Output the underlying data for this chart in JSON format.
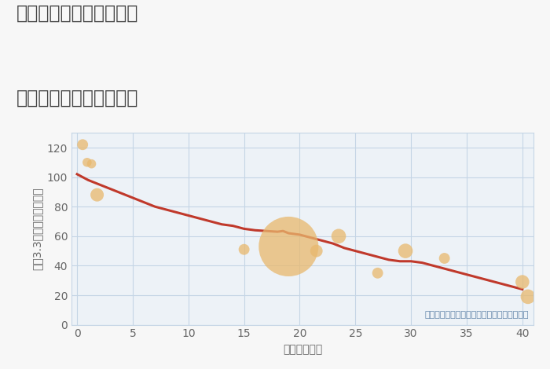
{
  "title_line1": "三重県四日市市羽津中の",
  "title_line2": "築年数別中古戸建て価格",
  "xlabel": "築年数（年）",
  "ylabel": "坪（3.3㎡）単価（万円）",
  "annotation": "円の大きさは、取引のあった物件面積を示す",
  "background_color": "#f7f7f7",
  "plot_bg_color": "#edf2f7",
  "grid_color": "#c5d5e5",
  "bubble_color": "#e8b86d",
  "bubble_alpha": 0.75,
  "line_color": "#c0392b",
  "line_width": 2.2,
  "xlim": [
    -0.5,
    41
  ],
  "ylim": [
    0,
    130
  ],
  "xticks": [
    0,
    5,
    10,
    15,
    20,
    25,
    30,
    35,
    40
  ],
  "yticks": [
    0,
    20,
    40,
    60,
    80,
    100,
    120
  ],
  "scatter_x": [
    0.5,
    0.9,
    1.3,
    1.8,
    15,
    19,
    21.5,
    23.5,
    27,
    29.5,
    33,
    40,
    40.5
  ],
  "scatter_y": [
    122,
    110,
    109,
    88,
    51,
    53,
    50,
    60,
    35,
    50,
    45,
    29,
    19
  ],
  "scatter_size": [
    100,
    70,
    70,
    150,
    100,
    3000,
    130,
    180,
    100,
    180,
    100,
    160,
    180
  ],
  "trend_x": [
    0,
    1,
    2,
    3,
    4,
    5,
    6,
    7,
    8,
    9,
    10,
    11,
    12,
    13,
    14,
    15,
    16,
    17,
    18,
    18.5,
    19,
    20,
    21,
    22,
    23,
    24,
    25,
    26,
    27,
    28,
    29,
    30,
    31,
    32,
    33,
    34,
    35,
    36,
    37,
    38,
    39,
    40
  ],
  "trend_y": [
    102,
    98,
    95,
    92,
    89,
    86,
    83,
    80,
    78,
    76,
    74,
    72,
    70,
    68,
    67,
    65,
    64,
    63.5,
    63,
    63.5,
    62,
    61,
    59,
    57,
    55,
    52,
    50,
    48,
    46,
    44,
    43,
    43,
    42,
    40,
    38,
    36,
    34,
    32,
    30,
    28,
    26,
    24
  ],
  "title_color": "#444444",
  "axis_color": "#666666",
  "annotation_color": "#5b7fa6",
  "title_fontsize": 17,
  "axis_label_fontsize": 10,
  "tick_fontsize": 10
}
